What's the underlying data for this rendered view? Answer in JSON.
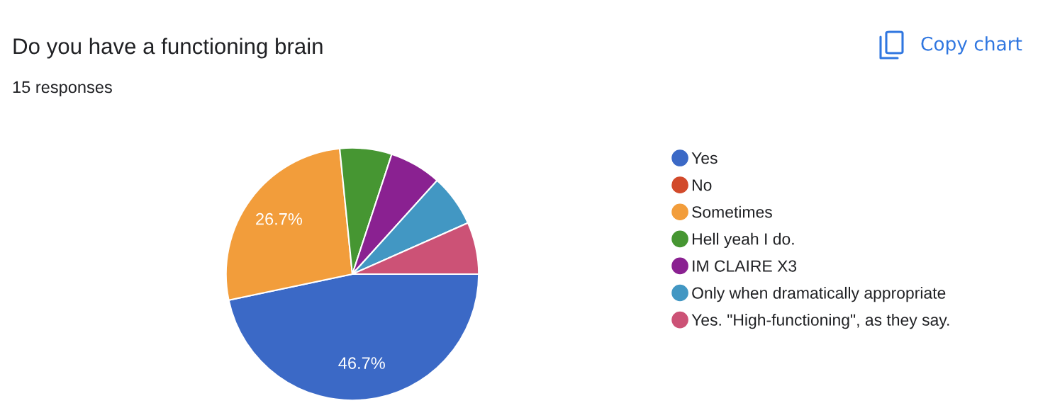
{
  "chart_data": {
    "type": "pie",
    "title": "Do you have a functioning brain",
    "subtitle": "15 responses",
    "annotations": [
      "Copy chart"
    ],
    "categories": [
      "Yes",
      "No",
      "Sometimes",
      "Hell yeah I do.",
      "IM CLAIRE X3",
      "Only when dramatically appropriate",
      "Yes. \"High-functioning\", as they say."
    ],
    "values": [
      46.7,
      0,
      26.7,
      6.65,
      6.65,
      6.65,
      6.65
    ],
    "colors": [
      "#3b69c6",
      "#d24a2b",
      "#f29d3b",
      "#469632",
      "#8a2191",
      "#4297c3",
      "#cc5276"
    ],
    "value_labels": [
      "46.7%",
      null,
      "26.7%",
      null,
      null,
      null,
      null
    ],
    "legend": "right"
  }
}
